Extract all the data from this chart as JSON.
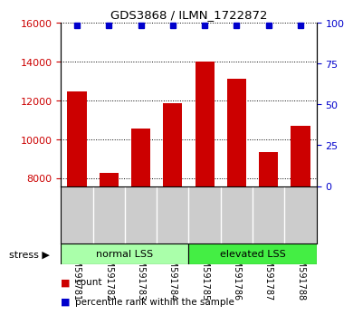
{
  "title": "GDS3868 / ILMN_1722872",
  "categories": [
    "GSM591781",
    "GSM591782",
    "GSM591783",
    "GSM591784",
    "GSM591785",
    "GSM591786",
    "GSM591787",
    "GSM591788"
  ],
  "counts": [
    12450,
    8300,
    10550,
    11850,
    13980,
    13100,
    9350,
    10700
  ],
  "ylim_left": [
    7600,
    16000
  ],
  "ylim_right": [
    0,
    100
  ],
  "yticks_left": [
    8000,
    10000,
    12000,
    14000,
    16000
  ],
  "yticks_right": [
    0,
    25,
    50,
    75,
    100
  ],
  "bar_color": "#cc0000",
  "dot_color": "#0000cc",
  "bar_width": 0.6,
  "groups": [
    {
      "label": "normal LSS",
      "start": 0,
      "end": 4,
      "color": "#aaffaa"
    },
    {
      "label": "elevated LSS",
      "start": 4,
      "end": 8,
      "color": "#44ee44"
    }
  ],
  "stress_label": "stress ▶",
  "legend_items": [
    {
      "color": "#cc0000",
      "label": "count"
    },
    {
      "color": "#0000cc",
      "label": "percentile rank within the sample"
    }
  ],
  "left_tick_color": "#cc0000",
  "right_tick_color": "#0000cc",
  "bg_color": "#ffffff",
  "plot_bg_color": "#ffffff",
  "label_area_color": "#cccccc",
  "normal_lss_color": "#aaffaa",
  "elevated_lss_color": "#44ee44"
}
